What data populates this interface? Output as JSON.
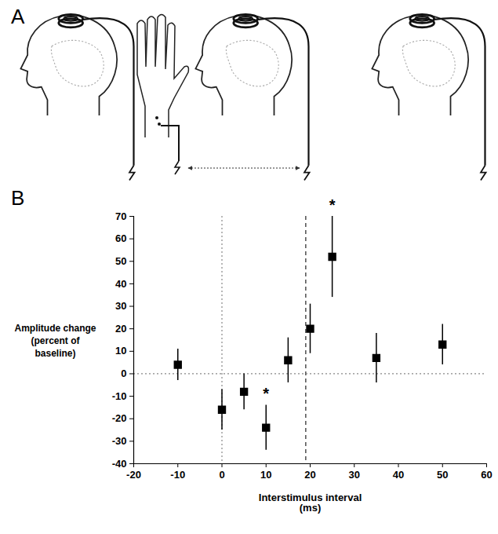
{
  "diagram": {
    "panel_label": "A"
  },
  "chart_data": {
    "type": "scatter",
    "panel_label": "B",
    "ylabel": "Amplitude change (percent of baseline)",
    "xlabel": "Interstimulus interval (ms)",
    "x": [
      -10,
      0,
      5,
      10,
      15,
      20,
      25,
      35,
      50
    ],
    "values": [
      4,
      -16,
      -8,
      -24,
      6,
      20,
      52,
      7,
      13
    ],
    "errors": [
      7,
      9,
      8,
      10,
      10,
      11,
      18,
      11,
      9
    ],
    "color": "#000000",
    "marker": "square",
    "xlim": [
      -20,
      60
    ],
    "xticks": [
      -20,
      -10,
      0,
      10,
      20,
      30,
      40,
      50,
      60
    ],
    "ylim": [
      -40,
      70
    ],
    "yticks": [
      -40,
      -30,
      -20,
      -10,
      0,
      10,
      20,
      30,
      40,
      50,
      60,
      70
    ],
    "grid": false,
    "reference_lines": [
      {
        "axis": "x",
        "value": 0,
        "line_style": "dotted"
      },
      {
        "axis": "x",
        "value": 19,
        "line_style": "dashed"
      },
      {
        "axis": "y",
        "value": 0,
        "line_style": "dotted"
      }
    ],
    "annotations": [
      {
        "text": "*",
        "x": 10
      },
      {
        "text": "*",
        "x": 25
      }
    ]
  }
}
